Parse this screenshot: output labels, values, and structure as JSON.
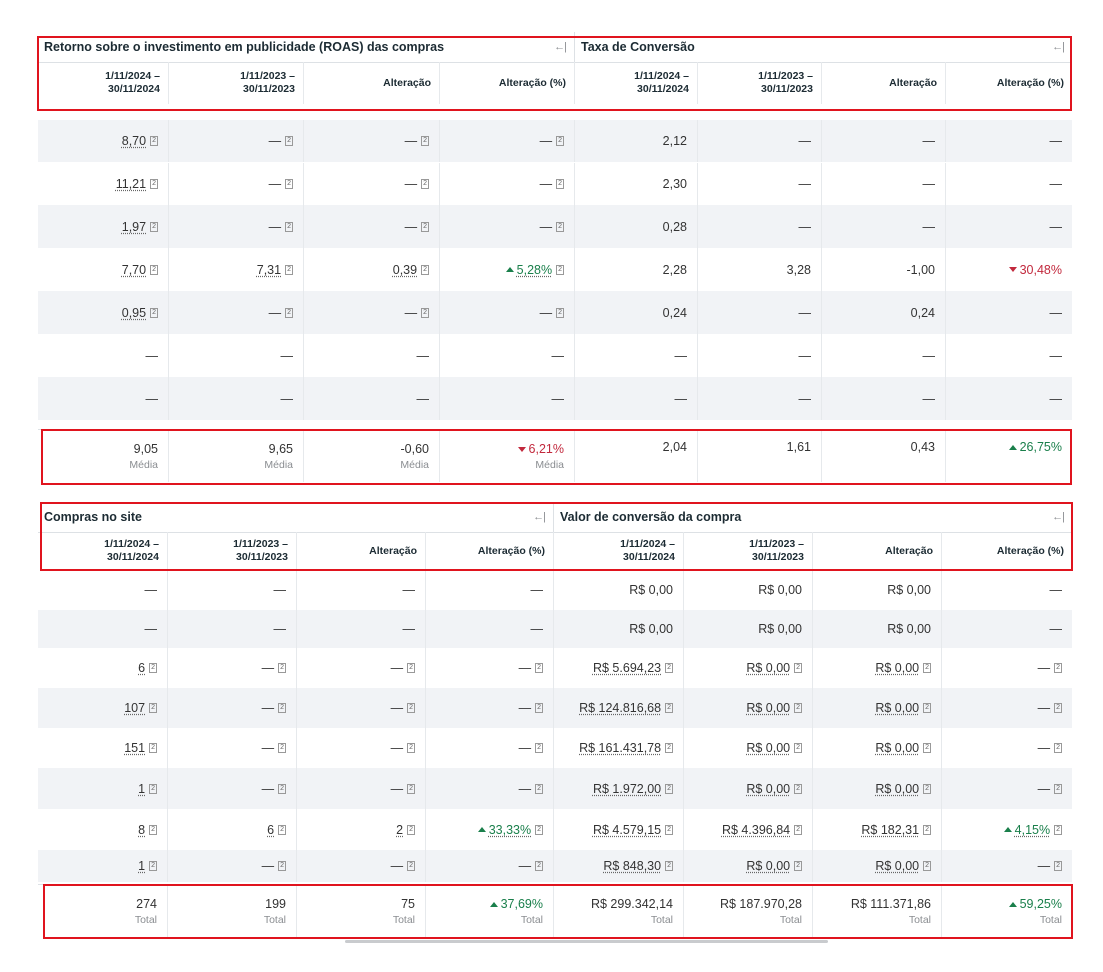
{
  "top": {
    "left_title": "Retorno sobre o investimento em publicidade (ROAS) das compras",
    "right_title": "Taxa de Conversão",
    "collapse_glyph": "←|",
    "headers": {
      "p1a": "1/11/2024 –",
      "p1b": "30/11/2024",
      "p2a": "1/11/2023 –",
      "p2b": "30/11/2023",
      "chg": "Alteração",
      "chgp": "Alteração (%)"
    },
    "rows": [
      [
        "8,70",
        "—",
        "—",
        "—",
        "2,12",
        "—",
        "—",
        "—"
      ],
      [
        "11,21",
        "—",
        "—",
        "—",
        "2,30",
        "—",
        "—",
        "—"
      ],
      [
        "1,97",
        "—",
        "—",
        "—",
        "0,28",
        "—",
        "—",
        "—"
      ],
      [
        "7,70",
        "7,31",
        "0,39",
        "5,28%",
        "2,28",
        "3,28",
        "-1,00",
        "30,48%"
      ],
      [
        "0,95",
        "—",
        "—",
        "—",
        "0,24",
        "—",
        "0,24",
        "—"
      ],
      [
        "—",
        "—",
        "—",
        "—",
        "—",
        "—",
        "—",
        "—"
      ],
      [
        "—",
        "—",
        "—",
        "—",
        "—",
        "—",
        "—",
        "—"
      ]
    ],
    "totals": [
      "9,05",
      "9,65",
      "-0,60",
      "6,21%",
      "2,04",
      "1,61",
      "0,43",
      "26,75%"
    ],
    "totals_sub": "Média"
  },
  "bottom": {
    "left_title": "Compras no site",
    "right_title": "Valor de conversão da compra",
    "rows": [
      [
        "—",
        "—",
        "—",
        "—",
        "R$ 0,00",
        "R$ 0,00",
        "R$ 0,00",
        "—"
      ],
      [
        "—",
        "—",
        "—",
        "—",
        "R$ 0,00",
        "R$ 0,00",
        "R$ 0,00",
        "—"
      ],
      [
        "6",
        "—",
        "—",
        "—",
        "R$ 5.694,23",
        "R$ 0,00",
        "R$ 0,00",
        "—"
      ],
      [
        "107",
        "—",
        "—",
        "—",
        "R$ 124.816,68",
        "R$ 0,00",
        "R$ 0,00",
        "—"
      ],
      [
        "151",
        "—",
        "—",
        "—",
        "R$ 161.431,78",
        "R$ 0,00",
        "R$ 0,00",
        "—"
      ],
      [
        "1",
        "—",
        "—",
        "—",
        "R$ 1.972,00",
        "R$ 0,00",
        "R$ 0,00",
        "—"
      ],
      [
        "8",
        "6",
        "2",
        "33,33%",
        "R$ 4.579,15",
        "R$ 4.396,84",
        "R$ 182,31",
        "4,15%"
      ],
      [
        "1",
        "—",
        "—",
        "—",
        "R$ 848,30",
        "R$ 0,00",
        "R$ 0,00",
        "—"
      ]
    ],
    "totals": [
      "274",
      "199",
      "75",
      "37,69%",
      "R$ 299.342,14",
      "R$ 187.970,28",
      "R$ 111.371,86",
      "59,25%"
    ],
    "totals_sub": "Total"
  },
  "colors": {
    "positive": "#1a7f4b",
    "negative": "#c2293d",
    "highlight_border": "#e0141e"
  },
  "footnote_marker": "[2]"
}
